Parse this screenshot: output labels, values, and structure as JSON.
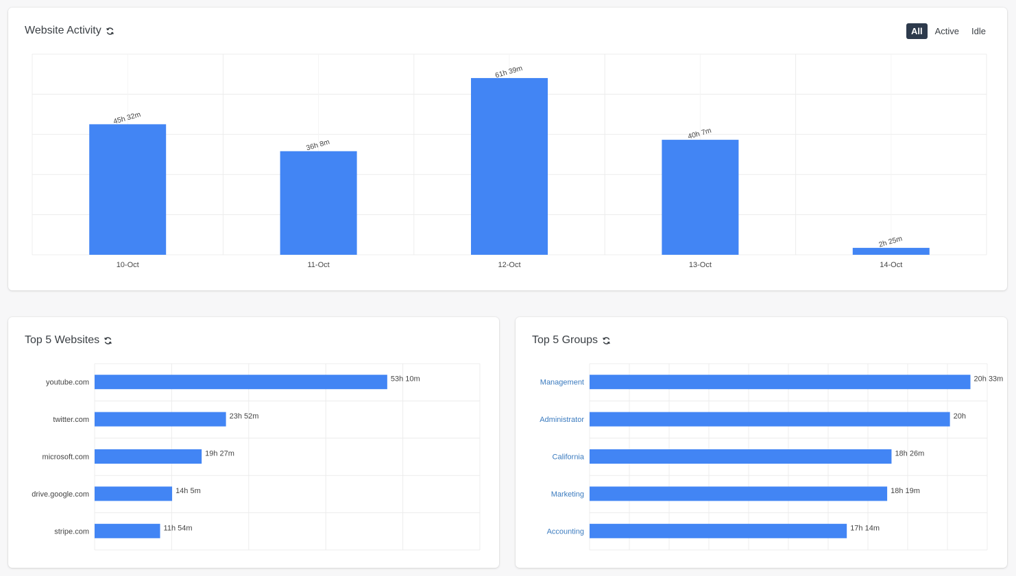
{
  "activity": {
    "title": "Website Activity",
    "refresh_icon": "refresh-icon",
    "filters": [
      {
        "label": "All",
        "selected": true
      },
      {
        "label": "Active",
        "selected": false
      },
      {
        "label": "Idle",
        "selected": false
      }
    ]
  },
  "websites": {
    "title": "Top 5 Websites",
    "refresh_icon": "refresh-icon"
  },
  "groups": {
    "title": "Top 5 Groups",
    "refresh_icon": "refresh-icon"
  },
  "colors": {
    "bar": "#4285f4",
    "group_link": "#3b7bbf",
    "selected_filter_bg": "#2d3a4c"
  },
  "chart_data": [
    {
      "type": "bar",
      "title": "Website Activity",
      "categories": [
        "10-Oct",
        "11-Oct",
        "12-Oct",
        "13-Oct",
        "14-Oct"
      ],
      "values_minutes": [
        2732,
        2168,
        3699,
        2407,
        145
      ],
      "data_labels": [
        "45h 32m",
        "36h 8m",
        "61h 39m",
        "40h 7m",
        "2h 25m"
      ],
      "ylim_minutes": [
        0,
        4200
      ],
      "grid": true
    },
    {
      "type": "bar",
      "orientation": "horizontal",
      "title": "Top 5 Websites",
      "categories": [
        "youtube.com",
        "twitter.com",
        "microsoft.com",
        "drive.google.com",
        "stripe.com"
      ],
      "values_minutes": [
        3190,
        1432,
        1167,
        845,
        714
      ],
      "data_labels": [
        "53h 10m",
        "23h 52m",
        "19h 27m",
        "14h 5m",
        "11h 54m"
      ],
      "xlim_minutes": [
        0,
        4200
      ],
      "grid": true
    },
    {
      "type": "bar",
      "orientation": "horizontal",
      "title": "Top 5 Groups",
      "categories": [
        "Management",
        "Administrator",
        "California",
        "Marketing",
        "Accounting"
      ],
      "values_minutes": [
        1233,
        1200,
        1106,
        1099,
        1034
      ],
      "data_labels": [
        "20h 33m",
        "20h",
        "18h 26m",
        "18h 19m",
        "17h 14m"
      ],
      "xlim_minutes": [
        620,
        1260
      ],
      "grid": true
    }
  ]
}
